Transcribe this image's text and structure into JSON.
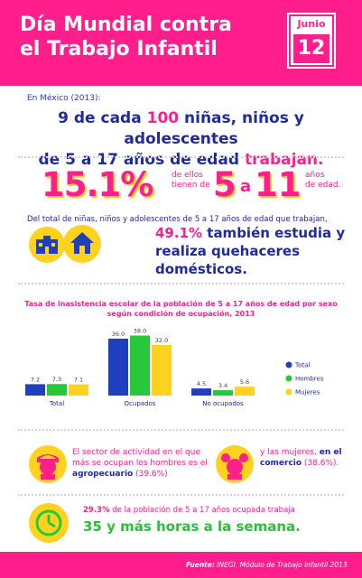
{
  "header": {
    "title": "Día Mundial contra\nel Trabajo Infantil",
    "calendar_month": "Junio",
    "calendar_day": "12"
  },
  "intro": {
    "label": "En México (2013):",
    "line1_a": "9 de cada ",
    "line1_b": "100",
    "line1_c": " niñas, niños y adolescentes",
    "line2_a": "de 5 a 17 años de edad ",
    "line2_b": "trabajan."
  },
  "stat1": {
    "value": "15.1%",
    "text": "de ellos\ntienen de",
    "age_from": "5",
    "age_sep": "a",
    "age_to": "11",
    "age_unit": "años\nde edad."
  },
  "stat2": {
    "intro": "Del total de niñas, niños y adolescentes de 5 a 17 años de edad que trabajan,",
    "value": "49.1%",
    "text_a": " también estudia y",
    "text_b": "realiza quehaceres domésticos.",
    "icons": [
      "school-building-icon",
      "house-icon"
    ]
  },
  "chart_data": {
    "type": "bar",
    "title": "Tasa de inasistencia escolar de la población de 5 a 17 años de edad por sexo según condición de ocupación, 2013",
    "categories": [
      "Total",
      "Ocupados",
      "No ocupados"
    ],
    "series": [
      {
        "name": "Total",
        "color": "#1f3fbf",
        "values": [
          7.2,
          36.0,
          4.5
        ]
      },
      {
        "name": "Hombres",
        "color": "#27c93a",
        "values": [
          7.3,
          38.0,
          3.4
        ]
      },
      {
        "name": "Mujeres",
        "color": "#ffd21f",
        "values": [
          7.1,
          32.0,
          5.6
        ]
      }
    ],
    "value_labels": [
      [
        "7.2",
        "7.3",
        "7.1"
      ],
      [
        "36.0",
        "38.0",
        "32.0"
      ],
      [
        "4.5",
        "3.4",
        "5.6"
      ]
    ],
    "ylim": [
      0,
      40
    ],
    "legend": "right"
  },
  "facts": {
    "men_a": "El sector de actividad en el que más se ocupan los hombres es el ",
    "men_b": "agropecuario",
    "men_c": " (39.6%)",
    "women_a": "y las mujeres, ",
    "women_b": "en el comercio",
    "women_c": " (38.6%).",
    "icons": [
      "boy-face-icon",
      "girl-face-icon"
    ]
  },
  "hours": {
    "text_a": "29.3%",
    "text_b": " de la población de 5 a 17 años ocupada trabaja",
    "big": "35 y más horas a la semana.",
    "icon": "clock-icon"
  },
  "footer": {
    "label": "Fuente:",
    "text": " INEGI. Módulo de Trabajo Infantil 2013."
  }
}
